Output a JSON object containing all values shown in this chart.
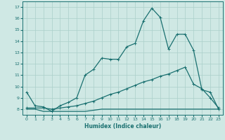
{
  "title": "",
  "xlabel": "Humidex (Indice chaleur)",
  "xlim": [
    -0.5,
    23.5
  ],
  "ylim": [
    7.5,
    17.5
  ],
  "yticks": [
    8,
    9,
    10,
    11,
    12,
    13,
    14,
    15,
    16,
    17
  ],
  "xticks": [
    0,
    1,
    2,
    3,
    4,
    5,
    6,
    7,
    8,
    9,
    10,
    11,
    12,
    13,
    14,
    15,
    16,
    17,
    18,
    19,
    20,
    21,
    22,
    23
  ],
  "background_color": "#cfe8e4",
  "grid_color": "#aacfca",
  "line_color": "#1a7070",
  "line1_x": [
    0,
    1,
    2,
    3,
    4,
    5,
    6,
    7,
    8,
    9,
    10,
    11,
    12,
    13,
    14,
    15,
    16,
    17,
    18,
    19,
    20,
    21,
    22,
    23
  ],
  "line1_y": [
    9.5,
    8.3,
    8.2,
    7.8,
    8.3,
    8.6,
    9.0,
    11.0,
    11.5,
    12.5,
    12.4,
    12.4,
    13.5,
    13.8,
    15.8,
    16.9,
    16.1,
    13.3,
    14.6,
    14.6,
    13.2,
    9.7,
    9.5,
    8.0
  ],
  "line2_x": [
    0,
    1,
    2,
    3,
    4,
    5,
    6,
    7,
    8,
    9,
    10,
    11,
    12,
    13,
    14,
    15,
    16,
    17,
    18,
    19,
    20,
    21,
    22,
    23
  ],
  "line2_y": [
    8.1,
    8.1,
    8.1,
    8.0,
    8.1,
    8.2,
    8.3,
    8.5,
    8.7,
    9.0,
    9.3,
    9.5,
    9.8,
    10.1,
    10.4,
    10.6,
    10.9,
    11.1,
    11.4,
    11.7,
    10.2,
    9.8,
    9.0,
    8.1
  ],
  "line3_x": [
    0,
    1,
    2,
    3,
    4,
    5,
    6,
    7,
    8,
    9,
    10,
    11,
    12,
    13,
    14,
    15,
    16,
    17,
    18,
    19,
    20,
    21,
    22,
    23
  ],
  "line3_y": [
    8.0,
    8.0,
    7.8,
    7.8,
    7.8,
    7.8,
    7.8,
    7.8,
    7.9,
    8.0,
    8.0,
    8.0,
    8.0,
    8.0,
    8.0,
    8.0,
    8.0,
    8.0,
    8.0,
    8.0,
    8.0,
    8.0,
    8.0,
    8.0
  ]
}
